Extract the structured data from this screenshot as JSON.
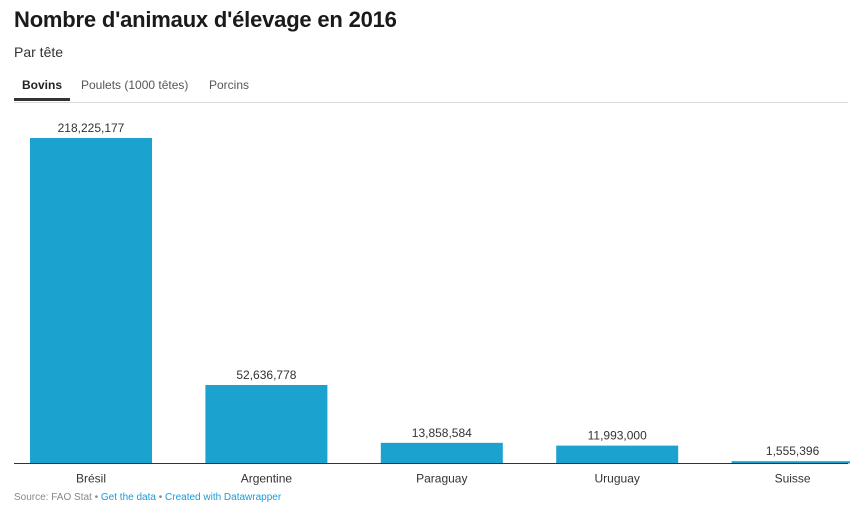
{
  "header": {
    "title": "Nombre d'animaux d'élevage en 2016",
    "subtitle": "Par tête"
  },
  "tabs": [
    {
      "label": "Bovins",
      "active": true
    },
    {
      "label": "Poulets (1000 têtes)",
      "active": false
    },
    {
      "label": "Porcins",
      "active": false
    }
  ],
  "colors": {
    "bar": "#1ba2cf",
    "text": "#333333",
    "axis": "#333333"
  },
  "chart_data": {
    "type": "bar",
    "title": "",
    "xlabel": "",
    "ylabel": "",
    "categories": [
      "Brésil",
      "Argentine",
      "Paraguay",
      "Uruguay",
      "Suisse"
    ],
    "values": [
      218225177,
      52636778,
      13858584,
      11993000,
      1555396
    ],
    "value_labels": [
      "218,225,177",
      "52,636,778",
      "13,858,584",
      "11,993,000",
      "1,555,396"
    ],
    "ylim": [
      0,
      218225177
    ],
    "grid": false,
    "legend": "none"
  },
  "footer": {
    "source": "Source: FAO Stat",
    "separator": "•",
    "get_data": "Get the data",
    "created_with": "Created with Datawrapper"
  }
}
